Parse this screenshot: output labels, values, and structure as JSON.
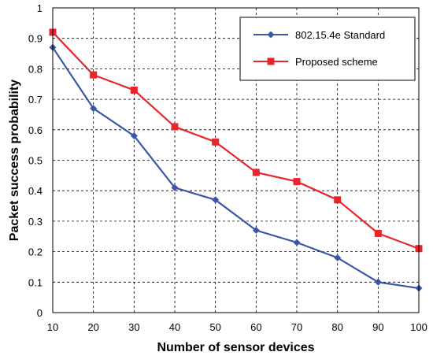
{
  "chart_data": {
    "type": "line",
    "x": [
      10,
      20,
      30,
      40,
      50,
      60,
      70,
      80,
      90,
      100
    ],
    "xlabel": "Number of sensor devices",
    "ylabel": "Packet success probability",
    "xlim": [
      10,
      100
    ],
    "ylim": [
      0,
      1
    ],
    "xticks": [
      "10",
      "20",
      "30",
      "40",
      "50",
      "60",
      "70",
      "80",
      "90",
      "100"
    ],
    "yticks": [
      "0",
      "0.1",
      "0.2",
      "0.3",
      "0.4",
      "0.5",
      "0.6",
      "0.7",
      "0.8",
      "0.9",
      "1"
    ],
    "grid": true,
    "legend_position": "top-right",
    "series": [
      {
        "name": "802.15.4e Standard",
        "color": "#3a56a8",
        "marker": "diamond",
        "values": [
          0.87,
          0.67,
          0.58,
          0.41,
          0.37,
          0.27,
          0.23,
          0.18,
          0.1,
          0.08
        ]
      },
      {
        "name": "Proposed scheme",
        "color": "#e8242c",
        "marker": "square",
        "values": [
          0.92,
          0.78,
          0.73,
          0.61,
          0.56,
          0.46,
          0.43,
          0.37,
          0.26,
          0.21
        ]
      }
    ]
  }
}
